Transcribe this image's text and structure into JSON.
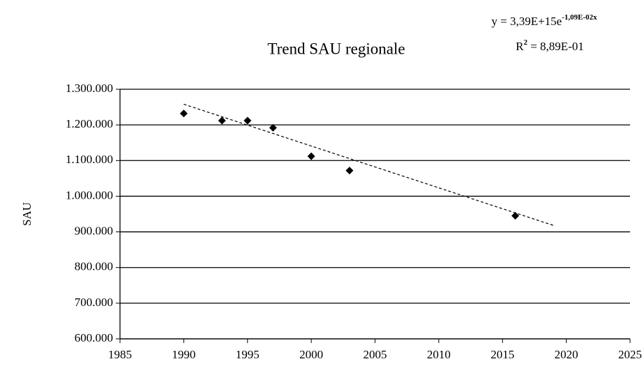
{
  "chart_data": {
    "type": "scatter",
    "title": "Trend SAU regionale",
    "ylabel": "SAU",
    "equation": {
      "base": "y = 3,39E+15e",
      "exponent": "-1,09E-02x"
    },
    "r2": {
      "base": "R",
      "exponent": "2",
      "rest": " = 8,89E-01"
    },
    "series": [
      {
        "name": "SAU",
        "color": "#000000",
        "x": [
          1990,
          1993,
          1995,
          1997,
          2000,
          2003,
          2016
        ],
        "values": [
          1232000,
          1212000,
          1212000,
          1192000,
          1112000,
          1072000,
          945000
        ]
      }
    ],
    "trendline": {
      "color": "#000000",
      "x": [
        1990,
        2019
      ],
      "values": [
        1258000,
        918000
      ]
    },
    "xlim": [
      1985,
      2025
    ],
    "xticks": [
      1985,
      1990,
      1995,
      2000,
      2005,
      2010,
      2015,
      2020,
      2025
    ],
    "ylim": [
      600000,
      1300000
    ],
    "yticks": [
      {
        "value": 600000,
        "label": "600.000"
      },
      {
        "value": 700000,
        "label": "700.000"
      },
      {
        "value": 800000,
        "label": "800.000"
      },
      {
        "value": 900000,
        "label": "900.000"
      },
      {
        "value": 1000000,
        "label": "1.000.000"
      },
      {
        "value": 1100000,
        "label": "1.100.000"
      },
      {
        "value": 1200000,
        "label": "1.200.000"
      },
      {
        "value": 1300000,
        "label": "1.300.000"
      }
    ],
    "grid": true
  }
}
